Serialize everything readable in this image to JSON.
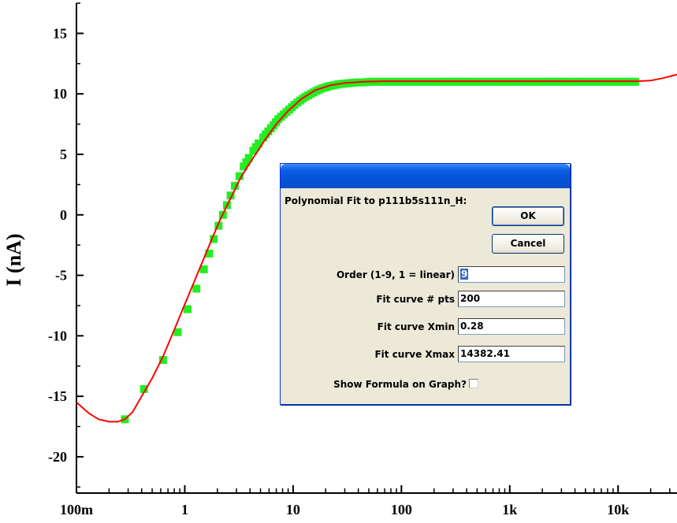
{
  "chart_data": {
    "type": "scatter",
    "ylabel": "I (nA)",
    "xscale": "log",
    "xlim": [
      0.1,
      35000
    ],
    "ylim": [
      -23,
      17.5
    ],
    "x_ticks": [
      {
        "value": 0.1,
        "label": "100m"
      },
      {
        "value": 1,
        "label": "1"
      },
      {
        "value": 10,
        "label": "10"
      },
      {
        "value": 100,
        "label": "100"
      },
      {
        "value": 1000,
        "label": "1k"
      },
      {
        "value": 10000,
        "label": "10k"
      }
    ],
    "y_ticks": [
      {
        "value": 15,
        "label": "15"
      },
      {
        "value": 10,
        "label": "10"
      },
      {
        "value": 5,
        "label": "5"
      },
      {
        "value": 0,
        "label": "0"
      },
      {
        "value": -5,
        "label": "-5"
      },
      {
        "value": -10,
        "label": "-10"
      },
      {
        "value": -15,
        "label": "-15"
      },
      {
        "value": -20,
        "label": "-20"
      }
    ],
    "series": [
      {
        "style": "markers",
        "color": "#22ee22",
        "x": [
          0.28,
          0.42,
          0.63,
          0.86,
          1.06,
          1.28,
          1.5,
          1.68,
          1.85,
          2.05,
          2.25,
          2.45,
          2.65,
          2.9,
          3.2,
          3.5,
          3.9,
          4.3,
          4.8,
          5.3,
          5.9,
          6.6,
          7.3,
          8.2,
          9.2,
          10.3,
          11.6,
          13,
          14.6,
          16.4,
          18.5,
          20.8,
          23.5,
          26.5,
          30,
          34,
          39,
          45,
          52,
          60,
          70,
          82,
          100,
          200,
          500,
          1000,
          2000,
          5000,
          10000,
          14382
        ],
        "y": [
          -16.9,
          -14.4,
          -12,
          -9.7,
          -7.8,
          -6.1,
          -4.5,
          -3.2,
          -2,
          -0.9,
          0,
          0.8,
          1.6,
          2.4,
          3.2,
          4,
          4.7,
          5.3,
          5.9,
          6.4,
          6.9,
          7.4,
          7.9,
          8.3,
          8.7,
          9.1,
          9.45,
          9.75,
          10,
          10.25,
          10.45,
          10.6,
          10.7,
          10.8,
          10.85,
          10.9,
          10.95,
          10.95,
          11,
          11,
          11,
          11,
          11,
          11,
          11,
          11,
          11,
          11,
          11,
          11
        ]
      },
      {
        "style": "line",
        "color": "#ff0000",
        "x": [
          0.1,
          0.13,
          0.16,
          0.2,
          0.24,
          0.28,
          0.33,
          0.4,
          0.5,
          0.63,
          0.8,
          1,
          1.25,
          1.5,
          1.8,
          2.1,
          2.4,
          2.8,
          3.2,
          3.8,
          4.5,
          5.5,
          7,
          9,
          12,
          16,
          22,
          30,
          45,
          70,
          100,
          300,
          1000,
          3000,
          10000,
          15000,
          20000,
          26000,
          35000
        ],
        "y": [
          -15.5,
          -16.4,
          -16.9,
          -17.1,
          -17.1,
          -16.9,
          -16.3,
          -15,
          -13.5,
          -11.7,
          -9.5,
          -7.4,
          -5.3,
          -3.6,
          -1.9,
          -0.5,
          0.6,
          1.8,
          2.9,
          4,
          5,
          6.2,
          7.5,
          8.6,
          9.6,
          10.3,
          10.7,
          10.9,
          11,
          11.05,
          11.05,
          11.05,
          11.05,
          11.05,
          11.05,
          11.05,
          11.1,
          11.3,
          11.6
        ]
      }
    ]
  },
  "dialog": {
    "prompt": "Polynomial Fit to p111b5s111n_H:",
    "ok_label": "OK",
    "cancel_label": "Cancel",
    "order_label": "Order (1-9, 1 = linear)",
    "order_value": "9",
    "pts_label": "Fit curve # pts",
    "pts_value": "200",
    "xmin_label": "Fit curve Xmin",
    "xmin_value": "0.28",
    "xmax_label": "Fit curve Xmax",
    "xmax_value": "14382.41",
    "formula_label": "Show Formula on Graph?",
    "formula_checked": false
  }
}
